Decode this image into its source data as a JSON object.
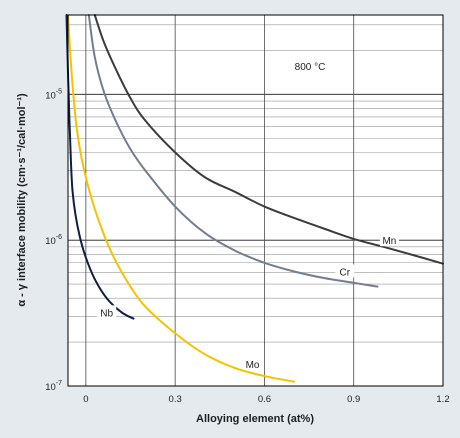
{
  "chart_data": {
    "type": "line",
    "title": "",
    "annotation": "800 °C",
    "xlabel": "Alloying element (at%)",
    "ylabel": "α - γ interface mobility (cm·s⁻¹/cal·mol⁻¹)",
    "xlim": [
      -0.06,
      1.2
    ],
    "ylim": [
      1e-07,
      3.5e-05
    ],
    "yscale": "log",
    "grid": true,
    "x_ticks": [
      {
        "value": 0,
        "label": "0"
      },
      {
        "value": 0.3,
        "label": "0.3"
      },
      {
        "value": 0.6,
        "label": "0.6"
      },
      {
        "value": 0.9,
        "label": "0.9"
      },
      {
        "value": 1.2,
        "label": "1.2"
      }
    ],
    "y_ticks": [
      {
        "value": 1e-07,
        "base": "10",
        "exp": "-7"
      },
      {
        "value": 1e-06,
        "base": "10",
        "exp": "-6"
      },
      {
        "value": 1e-05,
        "base": "10",
        "exp": "-5"
      }
    ],
    "series": [
      {
        "name": "Mn",
        "color": "#3c3c3c",
        "label_at": {
          "x": 1.02,
          "y": 1e-06
        },
        "x": [
          0.03,
          0.06,
          0.1,
          0.15,
          0.2,
          0.3,
          0.4,
          0.5,
          0.6,
          0.7,
          0.8,
          0.9,
          1.0,
          1.1,
          1.2
        ],
        "y": [
          3.5e-05,
          2.3e-05,
          1.5e-05,
          9.4e-06,
          6.6e-06,
          4e-06,
          2.7e-06,
          2.15e-06,
          1.7e-06,
          1.42e-06,
          1.2e-06,
          1.02e-06,
          9e-07,
          7.9e-07,
          6.9e-07
        ]
      },
      {
        "name": "Cr",
        "color": "#727c93",
        "label_at": {
          "x": 0.87,
          "y": 6.1e-07
        },
        "x": [
          0.01,
          0.03,
          0.06,
          0.1,
          0.15,
          0.2,
          0.3,
          0.4,
          0.5,
          0.6,
          0.7,
          0.8,
          0.9,
          0.98
        ],
        "y": [
          3.5e-05,
          1.8e-05,
          1.05e-05,
          6.6e-06,
          4.2e-06,
          3e-06,
          1.7e-06,
          1.12e-06,
          8.5e-07,
          7e-07,
          6.1e-07,
          5.5e-07,
          5.1e-07,
          4.8e-07
        ]
      },
      {
        "name": "Mo",
        "color": "#f6c200",
        "label_at": {
          "x": 0.56,
          "y": 1.42e-07
        },
        "x": [
          -0.06,
          -0.05,
          -0.04,
          -0.03,
          -0.01,
          0.02,
          0.06,
          0.1,
          0.15,
          0.2,
          0.3,
          0.4,
          0.5,
          0.6,
          0.7
        ],
        "y": [
          3.5e-05,
          1.6e-05,
          9e-06,
          5.7e-06,
          3.3e-06,
          1.9e-06,
          1.1e-06,
          7.2e-07,
          4.8e-07,
          3.5e-07,
          2.3e-07,
          1.65e-07,
          1.33e-07,
          1.17e-07,
          1.07e-07
        ]
      },
      {
        "name": "Nb",
        "color": "#0d1f44",
        "label_at": {
          "x": 0.07,
          "y": 3.2e-07
        },
        "x": [
          -0.065,
          -0.06,
          -0.055,
          -0.05,
          -0.045,
          -0.035,
          -0.02,
          0.0,
          0.03,
          0.07,
          0.12,
          0.16
        ],
        "y": [
          3.5e-05,
          1.4e-05,
          6.5e-06,
          3.4e-06,
          2.2e-06,
          1.5e-06,
          1.05e-06,
          7.6e-07,
          5.4e-07,
          4e-07,
          3.2e-07,
          2.9e-07
        ]
      }
    ]
  }
}
